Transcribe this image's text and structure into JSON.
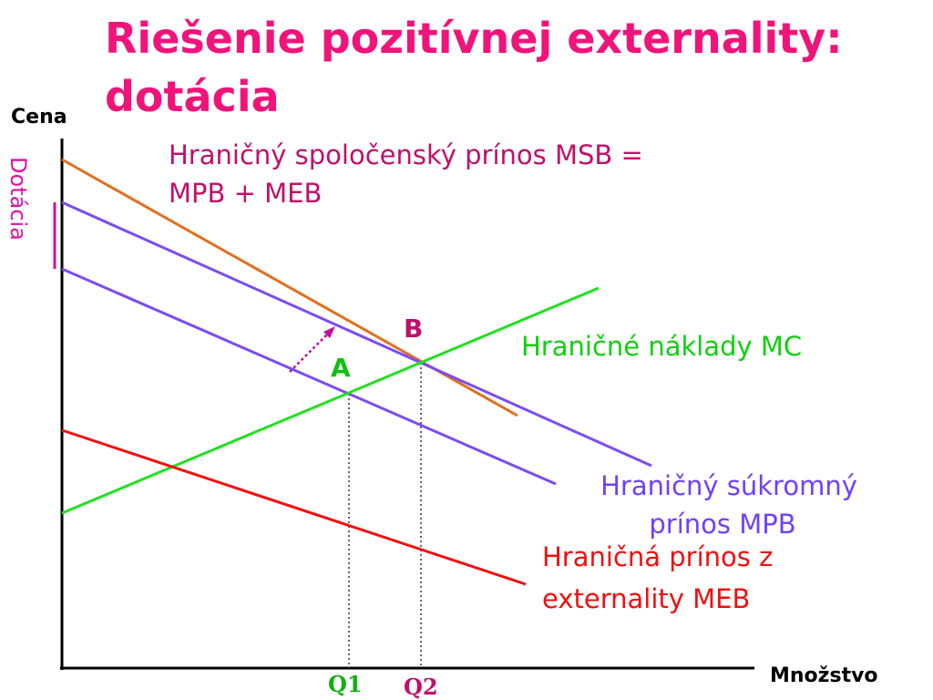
{
  "title": {
    "lines": [
      "Riešenie pozitívnej externality:",
      "dotácia"
    ]
  },
  "axes": {
    "y_label": "Cena",
    "x_label": "Množstvo",
    "subsidy_label": "Dotácia"
  },
  "labels": {
    "msb": [
      "Hraničný spoločenský prínos MSB =",
      "MPB + MEB"
    ],
    "mc": "Hraničné náklady MC",
    "mpb": [
      "Hraničný súkromný",
      "prínos MPB"
    ],
    "meb": [
      "Hraničná prínos z",
      "externality MEB"
    ],
    "point_a": "A",
    "point_b": "B",
    "q1": "Q1",
    "q2": "Q2"
  }
}
